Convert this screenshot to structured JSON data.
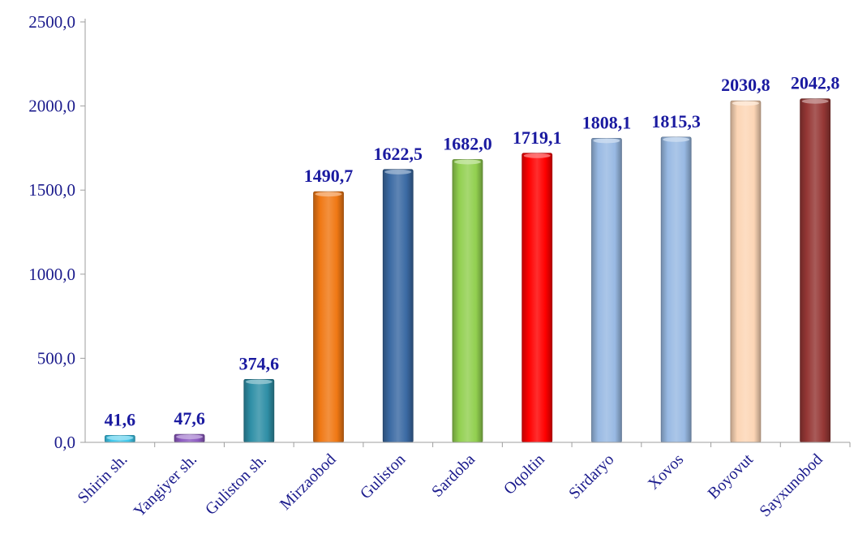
{
  "chart_data": {
    "type": "bar",
    "categories": [
      "Shirin sh.",
      "Yangiyer sh.",
      "Guliston sh.",
      "Mirzaobod",
      "Guliston",
      "Sardoba",
      "Oqoltin",
      "Sirdaryo",
      "Xovos",
      "Boyovut",
      "Sayxunobod"
    ],
    "values": [
      41.6,
      47.6,
      374.6,
      1490.7,
      1622.5,
      1682.0,
      1719.1,
      1808.1,
      1815.3,
      2030.8,
      2042.8
    ],
    "value_labels": [
      "41,6",
      "47,6",
      "374,6",
      "1490,7",
      "1622,5",
      "1682,0",
      "1719,1",
      "1808,1",
      "1815,3",
      "2030,8",
      "2042,8"
    ],
    "bar_colors": [
      "#3fc8ec",
      "#8e5bc2",
      "#2f8fa6",
      "#f07814",
      "#3b6aa3",
      "#92d050",
      "#ff0000",
      "#98b9e3",
      "#98b9e3",
      "#fcd5b5",
      "#953735"
    ],
    "y_ticks": [
      "0,0",
      "500,0",
      "1000,0",
      "1500,0",
      "2000,0",
      "2500,0"
    ],
    "y_tick_values": [
      0,
      500,
      1000,
      1500,
      2000,
      2500
    ],
    "ylim": [
      0,
      2500
    ],
    "title": "",
    "xlabel": "",
    "ylabel": "",
    "grid": false,
    "legend": "none",
    "colors": {
      "text": "#1a1a8c",
      "data_label": "#1a1aa0",
      "axis": "#9e9e9e"
    }
  }
}
